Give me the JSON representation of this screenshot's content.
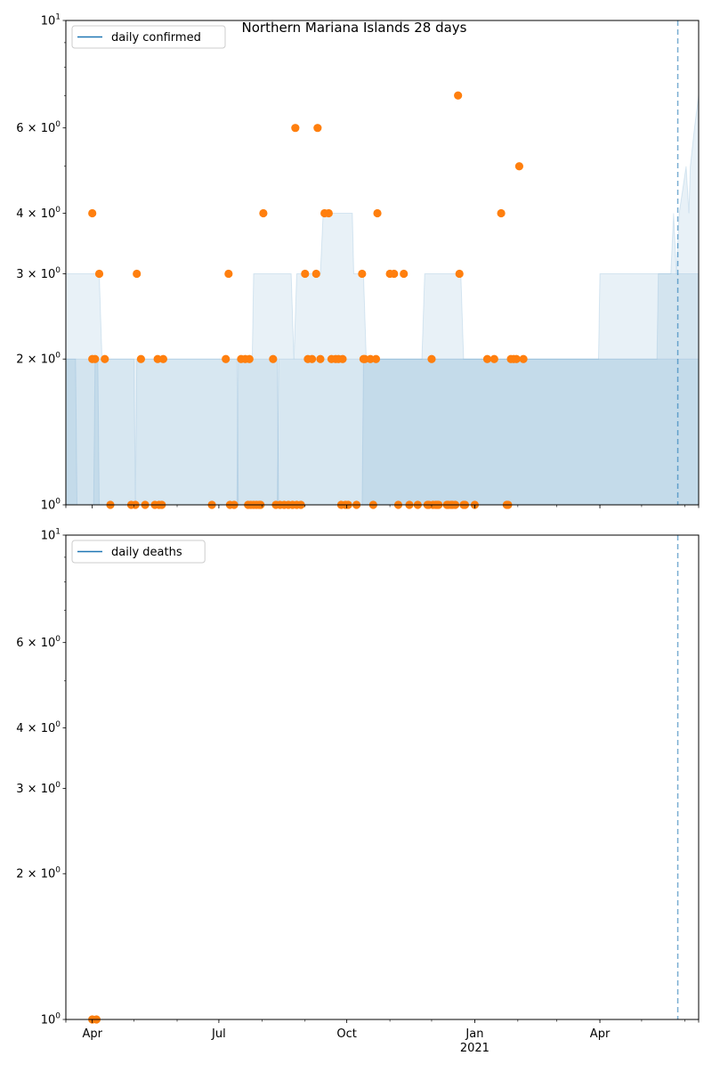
{
  "title": "Northern Mariana Islands 28 days",
  "colors": {
    "line": "#1f77b4",
    "marker": "#ff7f0e",
    "band": "#1f77b4"
  },
  "chart_data": [
    {
      "type": "scatter",
      "legend": {
        "label": "daily confirmed",
        "placement": "top-left"
      },
      "yscale": "log",
      "ylim": [
        1,
        10
      ],
      "xlim": [
        "2020-03-13",
        "2021-06-11"
      ],
      "xticks": [
        {
          "date": "2020-04-01",
          "label": "Apr",
          "sublabel": ""
        },
        {
          "date": "2020-07-01",
          "label": "Jul",
          "sublabel": ""
        },
        {
          "date": "2020-10-01",
          "label": "Oct",
          "sublabel": ""
        },
        {
          "date": "2021-01-01",
          "label": "Jan",
          "sublabel": "2021"
        },
        {
          "date": "2021-04-01",
          "label": "Apr",
          "sublabel": ""
        }
      ],
      "yticks": [
        {
          "value": 1,
          "base": "10",
          "exp": "0"
        },
        {
          "value": 2,
          "base": "2 × 10",
          "exp": "0"
        },
        {
          "value": 3,
          "base": "3 × 10",
          "exp": "0"
        },
        {
          "value": 4,
          "base": "4 × 10",
          "exp": "0"
        },
        {
          "value": 6,
          "base": "6 × 10",
          "exp": "0"
        },
        {
          "value": 10,
          "base": "10",
          "exp": "1"
        }
      ],
      "vline": "2021-05-27",
      "points": [
        [
          "2020-04-01",
          4
        ],
        [
          "2020-04-01",
          2
        ],
        [
          "2020-04-03",
          2
        ],
        [
          "2020-04-06",
          3
        ],
        [
          "2020-04-10",
          2
        ],
        [
          "2020-04-14",
          1
        ],
        [
          "2020-04-29",
          1
        ],
        [
          "2020-05-02",
          1
        ],
        [
          "2020-05-03",
          3
        ],
        [
          "2020-05-06",
          2
        ],
        [
          "2020-05-09",
          1
        ],
        [
          "2020-05-16",
          1
        ],
        [
          "2020-05-18",
          2
        ],
        [
          "2020-05-19",
          1
        ],
        [
          "2020-05-21",
          1
        ],
        [
          "2020-05-22",
          2
        ],
        [
          "2020-06-26",
          1
        ],
        [
          "2020-07-06",
          2
        ],
        [
          "2020-07-08",
          3
        ],
        [
          "2020-07-09",
          1
        ],
        [
          "2020-07-12",
          1
        ],
        [
          "2020-07-17",
          2
        ],
        [
          "2020-07-20",
          2
        ],
        [
          "2020-07-22",
          1
        ],
        [
          "2020-07-23",
          2
        ],
        [
          "2020-07-24",
          1
        ],
        [
          "2020-07-26",
          1
        ],
        [
          "2020-07-28",
          1
        ],
        [
          "2020-07-30",
          1
        ],
        [
          "2020-07-31",
          1
        ],
        [
          "2020-08-02",
          4
        ],
        [
          "2020-08-09",
          2
        ],
        [
          "2020-08-11",
          1
        ],
        [
          "2020-08-14",
          1
        ],
        [
          "2020-08-17",
          1
        ],
        [
          "2020-08-20",
          1
        ],
        [
          "2020-08-23",
          1
        ],
        [
          "2020-08-25",
          6
        ],
        [
          "2020-08-26",
          1
        ],
        [
          "2020-08-29",
          1
        ],
        [
          "2020-09-01",
          3
        ],
        [
          "2020-09-03",
          2
        ],
        [
          "2020-09-06",
          2
        ],
        [
          "2020-09-09",
          3
        ],
        [
          "2020-09-10",
          6
        ],
        [
          "2020-09-12",
          2
        ],
        [
          "2020-09-15",
          4
        ],
        [
          "2020-09-18",
          4
        ],
        [
          "2020-09-20",
          2
        ],
        [
          "2020-09-23",
          2
        ],
        [
          "2020-09-25",
          2
        ],
        [
          "2020-09-27",
          1
        ],
        [
          "2020-09-28",
          2
        ],
        [
          "2020-09-30",
          1
        ],
        [
          "2020-10-02",
          1
        ],
        [
          "2020-10-08",
          1
        ],
        [
          "2020-10-12",
          3
        ],
        [
          "2020-10-13",
          2
        ],
        [
          "2020-10-14",
          2
        ],
        [
          "2020-10-18",
          2
        ],
        [
          "2020-10-20",
          1
        ],
        [
          "2020-10-22",
          2
        ],
        [
          "2020-10-23",
          4
        ],
        [
          "2020-11-01",
          3
        ],
        [
          "2020-11-04",
          3
        ],
        [
          "2020-11-07",
          1
        ],
        [
          "2020-11-11",
          3
        ],
        [
          "2020-11-15",
          1
        ],
        [
          "2020-11-21",
          1
        ],
        [
          "2020-11-28",
          1
        ],
        [
          "2020-11-29",
          1
        ],
        [
          "2020-12-01",
          2
        ],
        [
          "2020-12-02",
          1
        ],
        [
          "2020-12-04",
          1
        ],
        [
          "2020-12-05",
          1
        ],
        [
          "2020-12-06",
          1
        ],
        [
          "2020-12-12",
          1
        ],
        [
          "2020-12-13",
          1
        ],
        [
          "2020-12-15",
          1
        ],
        [
          "2020-12-16",
          1
        ],
        [
          "2020-12-18",
          1
        ],
        [
          "2020-12-20",
          7
        ],
        [
          "2020-12-21",
          3
        ],
        [
          "2020-12-24",
          1
        ],
        [
          "2020-12-25",
          1
        ],
        [
          "2021-01-01",
          1
        ],
        [
          "2021-01-10",
          2
        ],
        [
          "2021-01-15",
          2
        ],
        [
          "2021-01-20",
          4
        ],
        [
          "2021-01-24",
          1
        ],
        [
          "2021-01-25",
          1
        ],
        [
          "2021-01-27",
          2
        ],
        [
          "2021-01-29",
          2
        ],
        [
          "2021-01-31",
          2
        ],
        [
          "2021-02-02",
          5
        ],
        [
          "2021-02-05",
          2
        ]
      ],
      "band_upper": [
        [
          "2020-03-13",
          3
        ],
        [
          "2020-04-06",
          3
        ],
        [
          "2020-04-08",
          2
        ],
        [
          "2020-07-25",
          2
        ],
        [
          "2020-07-26",
          3
        ],
        [
          "2020-08-22",
          3
        ],
        [
          "2020-08-24",
          2
        ],
        [
          "2020-08-26",
          3
        ],
        [
          "2020-09-12",
          3
        ],
        [
          "2020-09-14",
          4
        ],
        [
          "2020-10-05",
          4
        ],
        [
          "2020-10-06",
          3
        ],
        [
          "2020-10-13",
          3
        ],
        [
          "2020-10-15",
          2
        ],
        [
          "2020-11-24",
          2
        ],
        [
          "2020-11-26",
          3
        ],
        [
          "2020-12-22",
          3
        ],
        [
          "2020-12-24",
          2
        ],
        [
          "2021-03-31",
          2
        ],
        [
          "2021-04-01",
          3
        ],
        [
          "2021-05-22",
          3
        ],
        [
          "2021-05-24",
          4
        ],
        [
          "2021-05-26",
          3
        ],
        [
          "2021-05-28",
          4
        ],
        [
          "2021-06-02",
          5
        ],
        [
          "2021-06-04",
          4
        ],
        [
          "2021-06-05",
          5
        ],
        [
          "2021-06-08",
          6
        ],
        [
          "2021-06-11",
          7
        ]
      ],
      "band_mid": [
        [
          "2020-03-13",
          2
        ],
        [
          "2020-04-05",
          2
        ],
        [
          "2020-04-06",
          1
        ],
        [
          "2020-07-14",
          1
        ],
        [
          "2020-07-15",
          2
        ],
        [
          "2020-08-12",
          2
        ],
        [
          "2020-08-13",
          1
        ],
        [
          "2020-10-12",
          1
        ],
        [
          "2020-10-13",
          2
        ],
        [
          "2021-05-12",
          2
        ],
        [
          "2021-05-13",
          3
        ],
        [
          "2021-06-11",
          3
        ]
      ],
      "band_low": [
        [
          "2020-03-13",
          2
        ],
        [
          "2020-03-20",
          2
        ],
        [
          "2020-03-21",
          1
        ],
        [
          "2020-04-02",
          1
        ],
        [
          "2020-04-03",
          2
        ],
        [
          "2020-05-01",
          2
        ],
        [
          "2020-05-02",
          1
        ],
        [
          "2020-05-03",
          2
        ],
        [
          "2020-07-14",
          2
        ],
        [
          "2020-07-15",
          1
        ],
        [
          "2020-08-12",
          1
        ],
        [
          "2020-08-13",
          2
        ],
        [
          "2021-06-11",
          2
        ]
      ]
    },
    {
      "type": "scatter",
      "legend": {
        "label": "daily deaths",
        "placement": "top-left"
      },
      "yscale": "log",
      "ylim": [
        1,
        10
      ],
      "xlim": [
        "2020-03-13",
        "2021-06-11"
      ],
      "xticks": [
        {
          "date": "2020-04-01",
          "label": "Apr",
          "sublabel": ""
        },
        {
          "date": "2020-07-01",
          "label": "Jul",
          "sublabel": ""
        },
        {
          "date": "2020-10-01",
          "label": "Oct",
          "sublabel": ""
        },
        {
          "date": "2021-01-01",
          "label": "Jan",
          "sublabel": "2021"
        },
        {
          "date": "2021-04-01",
          "label": "Apr",
          "sublabel": ""
        }
      ],
      "yticks": [
        {
          "value": 1,
          "base": "10",
          "exp": "0"
        },
        {
          "value": 2,
          "base": "2 × 10",
          "exp": "0"
        },
        {
          "value": 3,
          "base": "3 × 10",
          "exp": "0"
        },
        {
          "value": 4,
          "base": "4 × 10",
          "exp": "0"
        },
        {
          "value": 6,
          "base": "6 × 10",
          "exp": "0"
        },
        {
          "value": 10,
          "base": "10",
          "exp": "1"
        }
      ],
      "vline": "2021-05-27",
      "points": [
        [
          "2020-04-01",
          1
        ],
        [
          "2020-04-04",
          1
        ]
      ],
      "band_upper": [],
      "band_mid": [],
      "band_low": []
    }
  ]
}
